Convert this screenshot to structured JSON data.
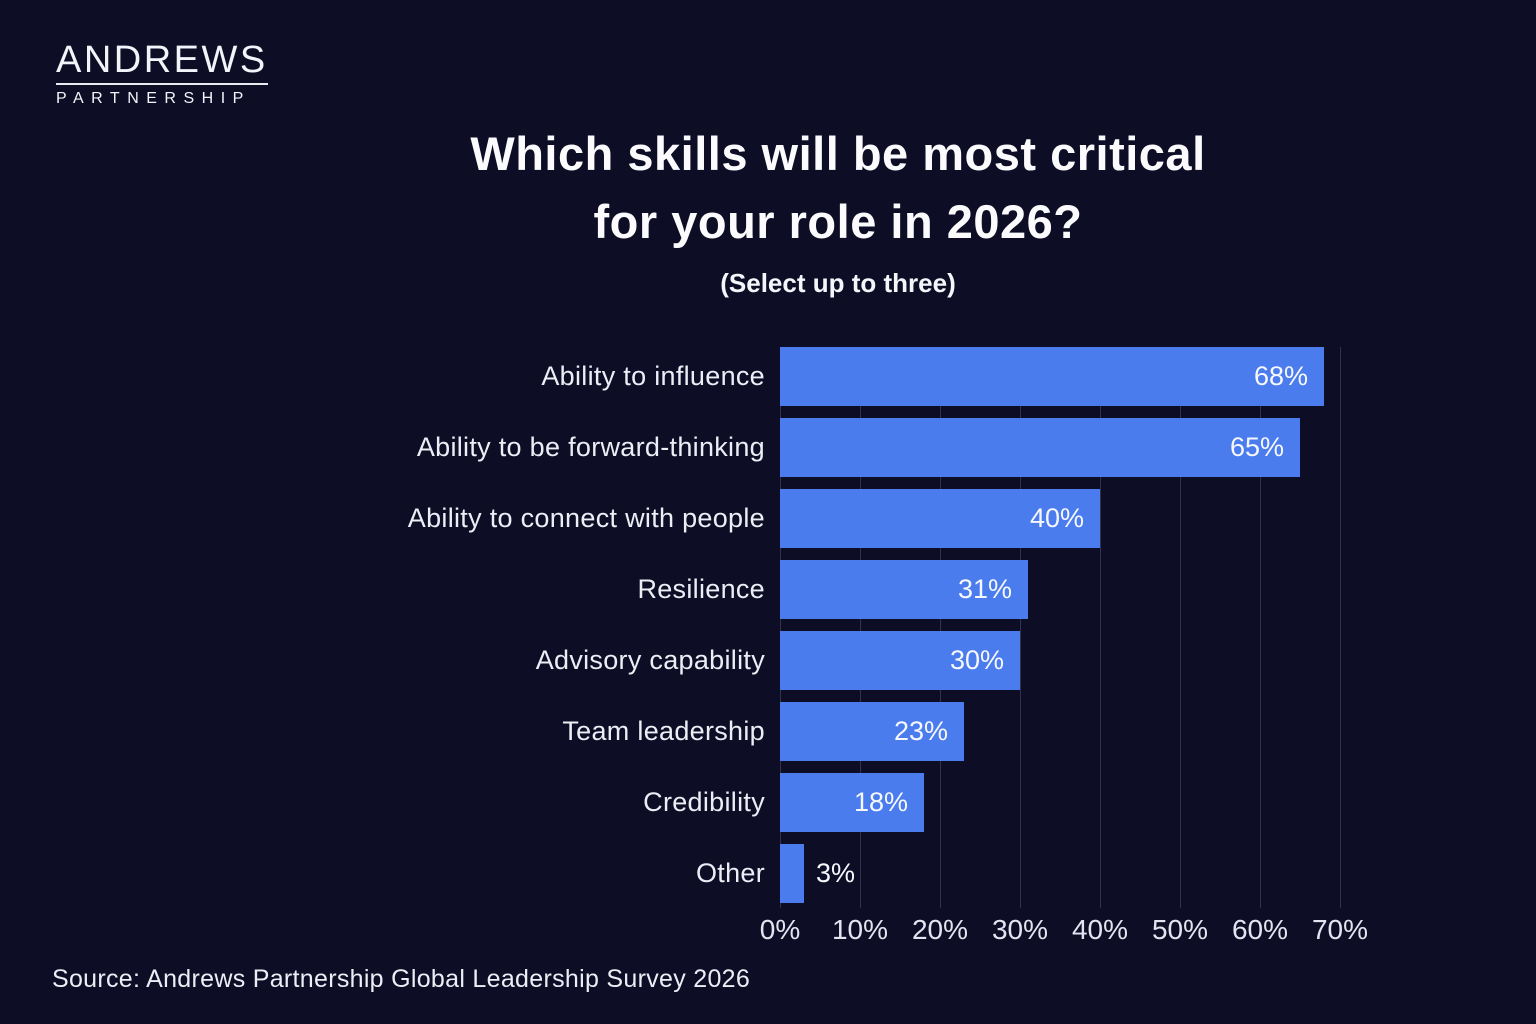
{
  "page": {
    "background_color": "#0d0d26",
    "accent_color": "#4a7cee"
  },
  "logo": {
    "brand": "ANDREWS",
    "sub": "PARTNERSHIP"
  },
  "header": {
    "title_line1": "Which skills will be most critical",
    "title_line2": "for your role in 2026?",
    "subtitle": "(Select up to three)"
  },
  "chart_data": {
    "type": "bar",
    "orientation": "horizontal",
    "title": "Which skills will be most critical for your role in 2026?",
    "subtitle": "(Select up to three)",
    "categories": [
      "Ability to influence",
      "Ability to be forward-thinking",
      "Ability to connect with people",
      "Resilience",
      "Advisory capability",
      "Team leadership",
      "Credibility",
      "Other"
    ],
    "values": [
      68,
      65,
      40,
      31,
      30,
      23,
      18,
      3
    ],
    "value_labels": [
      "68%",
      "65%",
      "40%",
      "31%",
      "30%",
      "23%",
      "18%",
      "3%"
    ],
    "unit": "%",
    "xlim": [
      0,
      70
    ],
    "x_ticks": [
      "0%",
      "10%",
      "20%",
      "30%",
      "40%",
      "50%",
      "60%",
      "70%"
    ],
    "x_tick_values": [
      0,
      10,
      20,
      30,
      40,
      50,
      60,
      70
    ],
    "bar_color": "#4a7cee",
    "grid": true,
    "legend": false
  },
  "footer": {
    "source": "Source: Andrews Partnership Global Leadership Survey 2026"
  }
}
